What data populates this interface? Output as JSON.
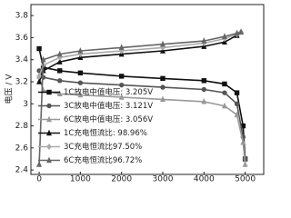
{
  "chart_data": {
    "type": "line",
    "y_label": "电压 / V",
    "xlim": [
      -200,
      5450
    ],
    "ylim": [
      2.36,
      3.9
    ],
    "xticks": [
      0,
      1000,
      2000,
      3000,
      4000,
      5000
    ],
    "yticks": [
      2.4,
      2.6,
      2.8,
      3.0,
      3.2,
      3.4,
      3.6,
      3.8
    ],
    "legend": "lower left",
    "series": [
      {
        "name": "1C放电中值电压: 3.205V",
        "color": "#111111",
        "marker": "square",
        "x": [
          0,
          100,
          500,
          1000,
          2000,
          3000,
          4000,
          4500,
          4800,
          4950,
          5000
        ],
        "values": [
          3.5,
          3.33,
          3.3,
          3.28,
          3.25,
          3.23,
          3.21,
          3.18,
          3.1,
          2.8,
          2.5
        ]
      },
      {
        "name": "3C放电中值电压: 3.121V",
        "color": "#555555",
        "marker": "circle",
        "x": [
          0,
          100,
          500,
          1000,
          2000,
          3000,
          4000,
          4500,
          4800,
          4950,
          5000
        ],
        "values": [
          3.3,
          3.24,
          3.21,
          3.19,
          3.17,
          3.15,
          3.13,
          3.1,
          3.0,
          2.7,
          2.5
        ]
      },
      {
        "name": "6C放电中值电压: 3.056V",
        "color": "#999999",
        "marker": "triangle",
        "x": [
          0,
          100,
          500,
          1000,
          2000,
          3000,
          4000,
          4500,
          4800,
          4950,
          5000
        ],
        "values": [
          3.25,
          3.12,
          3.09,
          3.08,
          3.06,
          3.04,
          3.02,
          2.98,
          2.9,
          2.65,
          2.45
        ]
      },
      {
        "name": "1C充电恒流比: 98.96%",
        "color": "#111111",
        "marker": "triangle",
        "x": [
          0,
          100,
          500,
          1000,
          2000,
          3000,
          4000,
          4500,
          4800,
          4900
        ],
        "values": [
          3.2,
          3.3,
          3.38,
          3.42,
          3.45,
          3.48,
          3.52,
          3.56,
          3.62,
          3.65
        ]
      },
      {
        "name": "3C充电恒流比97.50%",
        "color": "#aaaaaa",
        "marker": "diamond",
        "x": [
          0,
          100,
          500,
          1000,
          2000,
          3000,
          4000,
          4500,
          4800,
          4900
        ],
        "values": [
          3.25,
          3.35,
          3.42,
          3.45,
          3.48,
          3.51,
          3.55,
          3.59,
          3.63,
          3.65
        ]
      },
      {
        "name": "6C充电恒流比96.72%",
        "color": "#666666",
        "marker": "triangle",
        "x": [
          0,
          100,
          500,
          1000,
          2000,
          3000,
          4000,
          4500,
          4800,
          4900
        ],
        "values": [
          2.45,
          3.4,
          3.45,
          3.48,
          3.51,
          3.54,
          3.57,
          3.61,
          3.64,
          3.65
        ]
      }
    ]
  }
}
